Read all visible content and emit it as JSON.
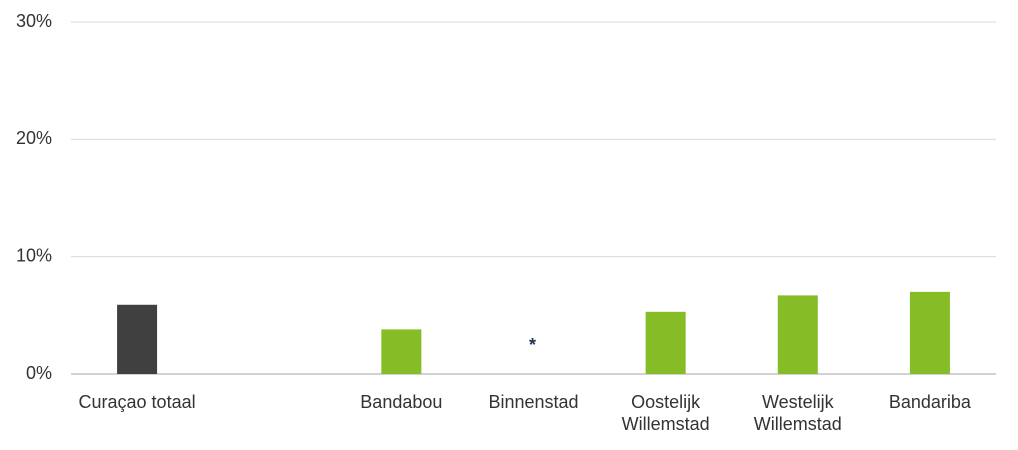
{
  "chart_data": {
    "type": "bar",
    "categories": [
      "Curaçao totaal",
      null,
      "Bandabou",
      "Binnenstad",
      "Oostelijk Willemstad",
      "Westelijk Willemstad",
      "Bandariba"
    ],
    "values": [
      5.9,
      null,
      3.8,
      null,
      5.3,
      6.7,
      7.0
    ],
    "value_labels": [
      null,
      null,
      null,
      "*",
      null,
      null,
      null
    ],
    "colors": [
      "#404040",
      null,
      "#86bc25",
      "#86bc25",
      "#86bc25",
      "#86bc25",
      "#86bc25"
    ],
    "ylim": [
      0,
      30
    ],
    "yticks": [
      {
        "value": 0,
        "label": "0%"
      },
      {
        "value": 10,
        "label": "10%"
      },
      {
        "value": 20,
        "label": "20%"
      },
      {
        "value": 30,
        "label": "30%"
      }
    ],
    "grid": true
  }
}
